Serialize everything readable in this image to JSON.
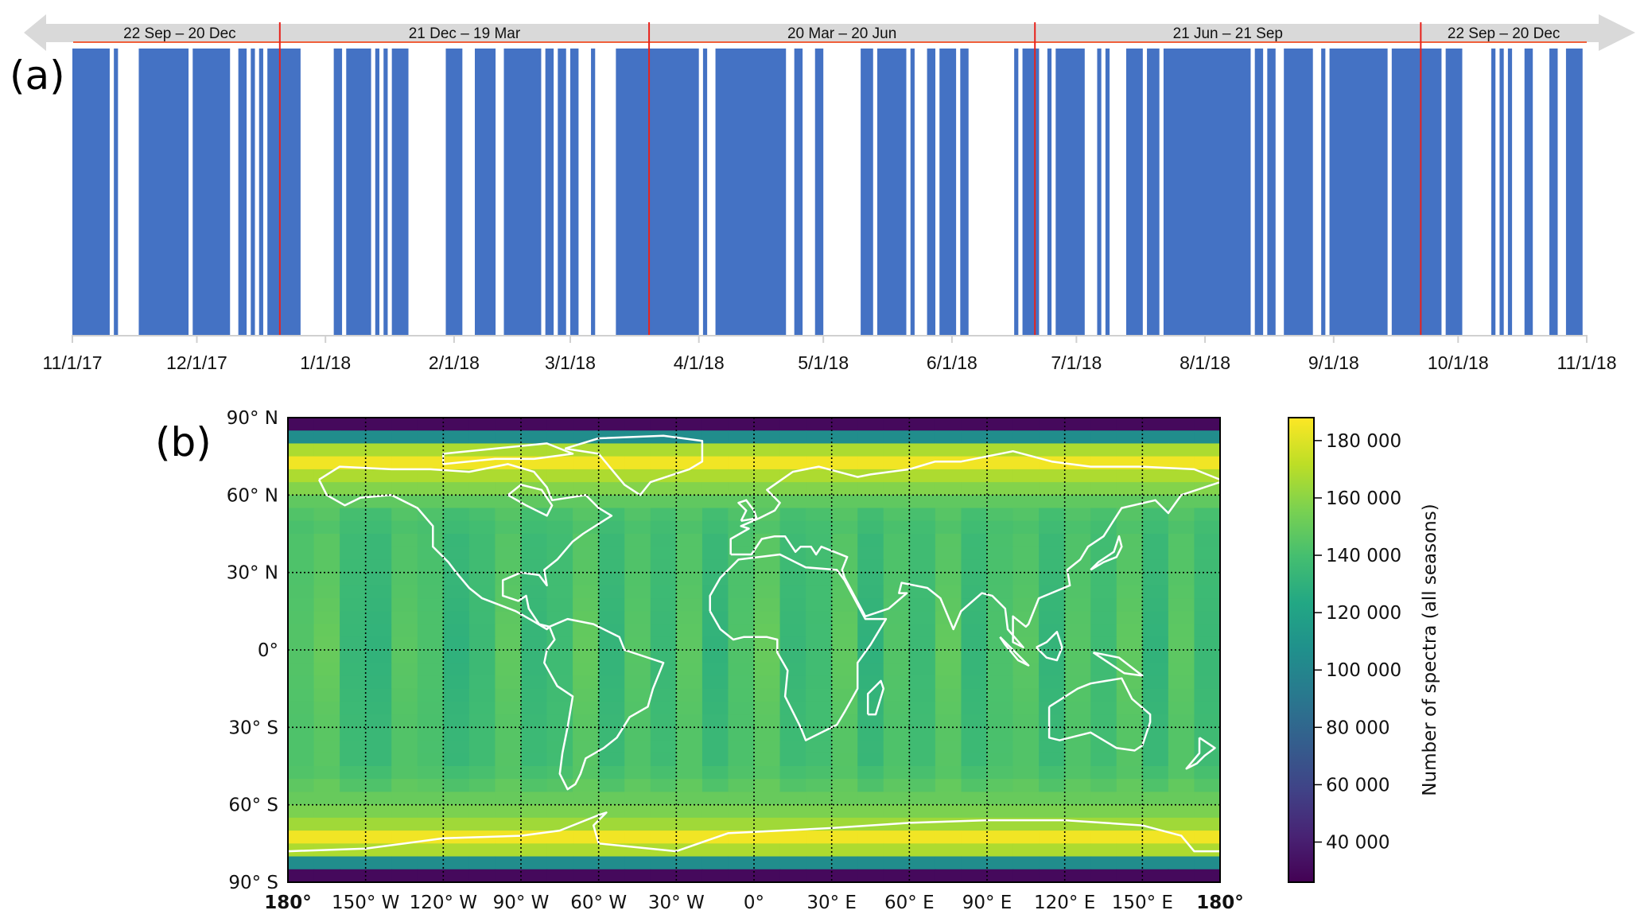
{
  "panel_labels": {
    "a": "(a)",
    "b": "(b)"
  },
  "chart_data": [
    {
      "type": "bar",
      "panel": "(a)",
      "description_kind": "observation-day timeline",
      "xlim": [
        "2017-11-01",
        "2018-11-01"
      ],
      "x_ticks": [
        {
          "date": "2017-11-01",
          "label": "11/1/17"
        },
        {
          "date": "2017-12-01",
          "label": "12/1/17"
        },
        {
          "date": "2018-01-01",
          "label": "1/1/18"
        },
        {
          "date": "2018-02-01",
          "label": "2/1/18"
        },
        {
          "date": "2018-03-01",
          "label": "3/1/18"
        },
        {
          "date": "2018-04-01",
          "label": "4/1/18"
        },
        {
          "date": "2018-05-01",
          "label": "5/1/18"
        },
        {
          "date": "2018-06-01",
          "label": "6/1/18"
        },
        {
          "date": "2018-07-01",
          "label": "7/1/18"
        },
        {
          "date": "2018-08-01",
          "label": "8/1/18"
        },
        {
          "date": "2018-09-01",
          "label": "9/1/18"
        },
        {
          "date": "2018-10-01",
          "label": "10/1/18"
        },
        {
          "date": "2018-11-01",
          "label": "11/1/18"
        }
      ],
      "seasons": [
        {
          "label": "22 Sep – 20 Dec",
          "end": "2017-12-21"
        },
        {
          "label": "21 Dec – 19 Mar",
          "end": "2018-03-20"
        },
        {
          "label": "20 Mar – 20 Jun",
          "end": "2018-06-21"
        },
        {
          "label": "21 Jun – 21 Sep",
          "end": "2018-09-22"
        },
        {
          "label": "22 Sep – 20 Dec",
          "end": "2018-11-01"
        }
      ],
      "season_boundaries": [
        "2017-12-21",
        "2018-03-20",
        "2018-06-21",
        "2018-09-22"
      ],
      "bar_color": "#4472C4",
      "boundary_color": "#E8221B",
      "band_color": "#D9D9D9",
      "observation_periods": [
        [
          "2017-11-01",
          "2017-11-10"
        ],
        [
          "2017-11-11",
          "2017-11-12"
        ],
        [
          "2017-11-17",
          "2017-11-29"
        ],
        [
          "2017-11-30",
          "2017-12-09"
        ],
        [
          "2017-12-11",
          "2017-12-13"
        ],
        [
          "2017-12-14",
          "2017-12-15"
        ],
        [
          "2017-12-16",
          "2017-12-17"
        ],
        [
          "2017-12-18",
          "2017-12-26"
        ],
        [
          "2018-01-03",
          "2018-01-05"
        ],
        [
          "2018-01-06",
          "2018-01-12"
        ],
        [
          "2018-01-13",
          "2018-01-14"
        ],
        [
          "2018-01-15",
          "2018-01-16"
        ],
        [
          "2018-01-17",
          "2018-01-21"
        ],
        [
          "2018-01-30",
          "2018-02-03"
        ],
        [
          "2018-02-06",
          "2018-02-11"
        ],
        [
          "2018-02-13",
          "2018-02-22"
        ],
        [
          "2018-02-23",
          "2018-02-25"
        ],
        [
          "2018-02-26",
          "2018-02-28"
        ],
        [
          "2018-03-01",
          "2018-03-03"
        ],
        [
          "2018-03-06",
          "2018-03-07"
        ],
        [
          "2018-03-12",
          "2018-04-01"
        ],
        [
          "2018-04-02",
          "2018-04-03"
        ],
        [
          "2018-04-05",
          "2018-04-22"
        ],
        [
          "2018-04-24",
          "2018-04-26"
        ],
        [
          "2018-04-29",
          "2018-05-01"
        ],
        [
          "2018-05-10",
          "2018-05-13"
        ],
        [
          "2018-05-14",
          "2018-05-21"
        ],
        [
          "2018-05-22",
          "2018-05-23"
        ],
        [
          "2018-05-26",
          "2018-05-28"
        ],
        [
          "2018-05-29",
          "2018-06-02"
        ],
        [
          "2018-06-03",
          "2018-06-05"
        ],
        [
          "2018-06-16",
          "2018-06-17"
        ],
        [
          "2018-06-18",
          "2018-06-22"
        ],
        [
          "2018-06-24",
          "2018-06-25"
        ],
        [
          "2018-06-26",
          "2018-07-03"
        ],
        [
          "2018-07-06",
          "2018-07-07"
        ],
        [
          "2018-07-08",
          "2018-07-09"
        ],
        [
          "2018-07-13",
          "2018-07-17"
        ],
        [
          "2018-07-18",
          "2018-07-21"
        ],
        [
          "2018-07-22",
          "2018-08-12"
        ],
        [
          "2018-08-13",
          "2018-08-15"
        ],
        [
          "2018-08-16",
          "2018-08-18"
        ],
        [
          "2018-08-20",
          "2018-08-27"
        ],
        [
          "2018-08-29",
          "2018-08-30"
        ],
        [
          "2018-08-31",
          "2018-09-14"
        ],
        [
          "2018-09-15",
          "2018-09-27"
        ],
        [
          "2018-09-28",
          "2018-10-02"
        ],
        [
          "2018-10-09",
          "2018-10-10"
        ],
        [
          "2018-10-11",
          "2018-10-12"
        ],
        [
          "2018-10-13",
          "2018-10-14"
        ],
        [
          "2018-10-17",
          "2018-10-19"
        ],
        [
          "2018-10-23",
          "2018-10-25"
        ],
        [
          "2018-10-27",
          "2018-10-31"
        ]
      ]
    },
    {
      "type": "heatmap",
      "panel": "(b)",
      "projection": "equirectangular",
      "xlim": [
        -180,
        180
      ],
      "ylim": [
        -90,
        90
      ],
      "grid": true,
      "colormap": "viridis",
      "x_ticks": [
        {
          "value": -180,
          "label": "180°"
        },
        {
          "value": -150,
          "label": "150° W"
        },
        {
          "value": -120,
          "label": "120° W"
        },
        {
          "value": -90,
          "label": "90° W"
        },
        {
          "value": -60,
          "label": "60° W"
        },
        {
          "value": -30,
          "label": "30° W"
        },
        {
          "value": 0,
          "label": "0°"
        },
        {
          "value": 30,
          "label": "30° E"
        },
        {
          "value": 60,
          "label": "60° E"
        },
        {
          "value": 90,
          "label": "90° E"
        },
        {
          "value": 120,
          "label": "120° E"
        },
        {
          "value": 150,
          "label": "150° E"
        },
        {
          "value": 180,
          "label": "180°"
        }
      ],
      "y_ticks": [
        {
          "value": 90,
          "label": "90° N"
        },
        {
          "value": 60,
          "label": "60° N"
        },
        {
          "value": 30,
          "label": "30° N"
        },
        {
          "value": 0,
          "label": "0°"
        },
        {
          "value": -30,
          "label": "30° S"
        },
        {
          "value": -60,
          "label": "60° S"
        },
        {
          "value": -90,
          "label": "90° S"
        }
      ],
      "lat_band_edges_north_to_south": [
        90,
        85,
        80,
        75,
        70,
        65,
        60,
        55,
        50,
        45,
        40,
        35,
        30,
        25,
        20,
        15,
        10,
        5,
        0,
        -5,
        -10,
        -15,
        -20,
        -25,
        -30,
        -35,
        -40,
        -45,
        -50,
        -55,
        -60,
        -65,
        -70,
        -75,
        -80,
        -85,
        -90
      ],
      "zonal_values": [
        30000,
        105000,
        168000,
        185000,
        168000,
        158000,
        148000,
        142000,
        140000,
        140000,
        140000,
        140000,
        140000,
        140000,
        140000,
        140000,
        140000,
        140000,
        140000,
        140000,
        140000,
        140000,
        140000,
        140000,
        140000,
        140000,
        140000,
        142000,
        146000,
        150000,
        156000,
        165000,
        185000,
        168000,
        105000,
        30000
      ],
      "longitude_columns_deg": 10,
      "longitude_variation": [
        4000,
        10000,
        -6000,
        -9000,
        6000,
        2000,
        -10000,
        -4000,
        8000,
        -7000,
        -3000,
        9000,
        -8000,
        5000,
        -5000,
        7000,
        -9000,
        3000,
        10000,
        -6000,
        -2000,
        8000,
        -10000,
        4000,
        -4000,
        9000,
        -7000,
        2000,
        6000,
        -8000,
        5000,
        -3000,
        8000,
        -9000,
        7000,
        -5000
      ],
      "colorbar": {
        "label": "Number of spectra (all seasons)",
        "range": [
          26000,
          188000
        ],
        "ticks": [
          {
            "value": 40000,
            "label": "40 000"
          },
          {
            "value": 60000,
            "label": "60 000"
          },
          {
            "value": 80000,
            "label": "80 000"
          },
          {
            "value": 100000,
            "label": "100 000"
          },
          {
            "value": 120000,
            "label": "120 000"
          },
          {
            "value": 140000,
            "label": "140 000"
          },
          {
            "value": 160000,
            "label": "160 000"
          },
          {
            "value": 180000,
            "label": "180 000"
          }
        ]
      },
      "coastline_color": "#FFFFFF"
    }
  ]
}
